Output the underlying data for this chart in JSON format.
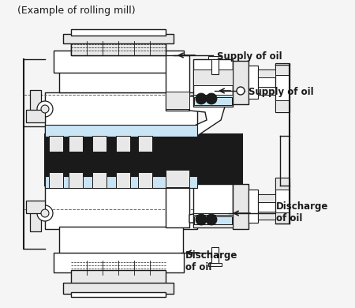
{
  "title": "(Example of rolling mill)",
  "bg_color": "#f5f5f5",
  "line_color": "#1a1a1a",
  "light_blue": "#c8e4f5",
  "label_supply1": "Supply of oil",
  "label_supply2": "Supply of oil",
  "label_discharge1": "Discharge\nof oil",
  "label_discharge2": "Discharge\nof oil",
  "dashed_color": "#666666",
  "gray_fill": "#e8e8e8",
  "white_fill": "#ffffff",
  "dark_fill": "#1a1a1a",
  "mid_gray": "#cccccc"
}
